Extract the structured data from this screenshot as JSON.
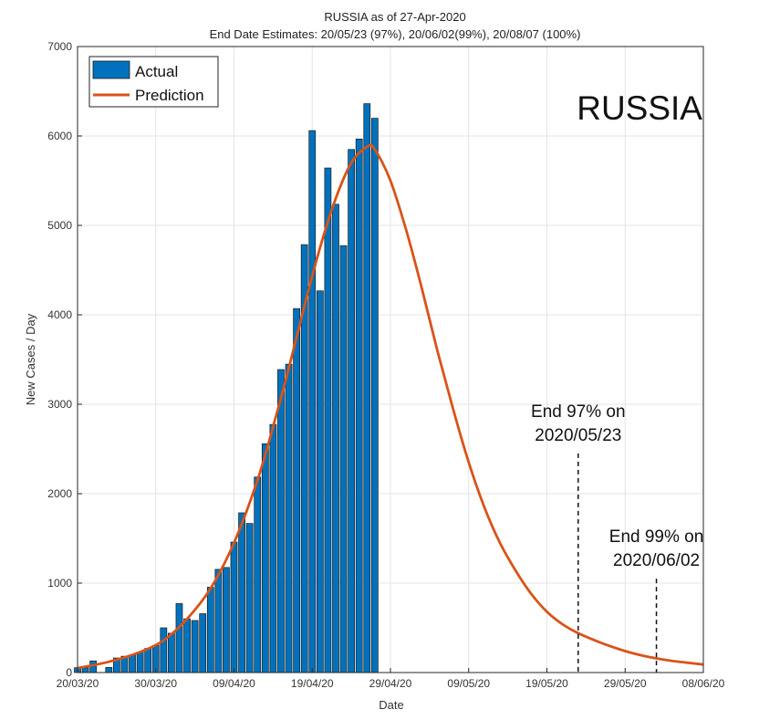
{
  "chart_data": {
    "type": "bar",
    "title": "RUSSIA as of 27-Apr-2020",
    "subtitle": "End Date Estimates: 20/05/23 (97%), 20/06/02(99%), 20/08/07 (100%)",
    "xlabel": "Date",
    "ylabel": "New Cases / Day",
    "ylim": [
      0,
      7000
    ],
    "yticks": [
      0,
      1000,
      2000,
      3000,
      4000,
      5000,
      6000,
      7000
    ],
    "xlim": [
      "2020-03-20",
      "2020-06-08"
    ],
    "xticks": [
      {
        "date": "2020-03-20",
        "label": "20/03/20"
      },
      {
        "date": "2020-03-30",
        "label": "30/03/20"
      },
      {
        "date": "2020-04-09",
        "label": "09/04/20"
      },
      {
        "date": "2020-04-19",
        "label": "19/04/20"
      },
      {
        "date": "2020-04-29",
        "label": "29/04/20"
      },
      {
        "date": "2020-05-09",
        "label": "09/05/20"
      },
      {
        "date": "2020-05-19",
        "label": "19/05/20"
      },
      {
        "date": "2020-05-29",
        "label": "29/05/20"
      },
      {
        "date": "2020-06-08",
        "label": "08/06/20"
      }
    ],
    "grid": true,
    "legend_position": "top-left",
    "series": [
      {
        "name": "Actual",
        "kind": "bar",
        "color": "#0072BD",
        "x": [
          "2020-03-20",
          "2020-03-21",
          "2020-03-22",
          "2020-03-23",
          "2020-03-24",
          "2020-03-25",
          "2020-03-26",
          "2020-03-27",
          "2020-03-28",
          "2020-03-29",
          "2020-03-30",
          "2020-03-31",
          "2020-04-01",
          "2020-04-02",
          "2020-04-03",
          "2020-04-04",
          "2020-04-05",
          "2020-04-06",
          "2020-04-07",
          "2020-04-08",
          "2020-04-09",
          "2020-04-10",
          "2020-04-11",
          "2020-04-12",
          "2020-04-13",
          "2020-04-14",
          "2020-04-15",
          "2020-04-16",
          "2020-04-17",
          "2020-04-18",
          "2020-04-19",
          "2020-04-20",
          "2020-04-21",
          "2020-04-22",
          "2020-04-23",
          "2020-04-24",
          "2020-04-25",
          "2020-04-26",
          "2020-04-27"
        ],
        "values": [
          54,
          53,
          130,
          0,
          57,
          163,
          182,
          196,
          228,
          270,
          302,
          500,
          440,
          771,
          601,
          582,
          658,
          954,
          1154,
          1175,
          1459,
          1786,
          1667,
          2186,
          2558,
          2774,
          3388,
          3448,
          4070,
          4785,
          6060,
          4268,
          5642,
          5236,
          4774,
          5849,
          5966,
          6361,
          6198
        ]
      },
      {
        "name": "Prediction",
        "kind": "line",
        "color": "#D95319",
        "x": [
          "2020-03-20",
          "2020-03-24",
          "2020-03-28",
          "2020-03-31",
          "2020-04-03",
          "2020-04-06",
          "2020-04-09",
          "2020-04-12",
          "2020-04-14",
          "2020-04-16",
          "2020-04-18",
          "2020-04-20",
          "2020-04-22",
          "2020-04-24",
          "2020-04-26",
          "2020-04-27",
          "2020-04-29",
          "2020-05-01",
          "2020-05-03",
          "2020-05-05",
          "2020-05-07",
          "2020-05-09",
          "2020-05-11",
          "2020-05-13",
          "2020-05-15",
          "2020-05-17",
          "2020-05-19",
          "2020-05-21",
          "2020-05-23",
          "2020-05-26",
          "2020-05-29",
          "2020-06-01",
          "2020-06-04",
          "2020-06-08"
        ],
        "values": [
          50,
          120,
          230,
          360,
          600,
          940,
          1450,
          2150,
          2750,
          3400,
          4100,
          4750,
          5300,
          5700,
          5880,
          5850,
          5500,
          4950,
          4300,
          3600,
          2950,
          2350,
          1850,
          1450,
          1140,
          880,
          680,
          540,
          440,
          330,
          240,
          175,
          130,
          90
        ]
      }
    ],
    "annotations": [
      {
        "text_lines": [
          "End 97% on",
          "2020/05/23"
        ],
        "date": "2020-05-23",
        "line_top": 2450
      },
      {
        "text_lines": [
          "End 99% on",
          "2020/06/02"
        ],
        "date": "2020-06-02",
        "line_top": 1050
      }
    ],
    "overlay_label": "RUSSIA"
  }
}
